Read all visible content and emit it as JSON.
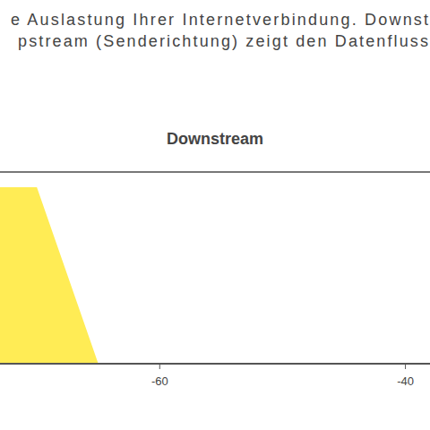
{
  "chart_data": {
    "type": "area",
    "subtitle": [
      "e Auslastung Ihrer Internetverbindung. Downst",
      "pstream (Senderichtung) zeigt den Datenfluss"
    ],
    "title": "Downstream",
    "x": [
      -73,
      -70,
      -65,
      -60,
      -50,
      -40,
      -38
    ],
    "values": [
      92,
      92,
      0,
      0,
      0,
      0,
      0
    ],
    "color": "#ffec55",
    "xlim": [
      -73,
      -38
    ],
    "xticks": [
      -60,
      -40
    ],
    "ylim": [
      0,
      100
    ],
    "tick_labels": "x"
  }
}
